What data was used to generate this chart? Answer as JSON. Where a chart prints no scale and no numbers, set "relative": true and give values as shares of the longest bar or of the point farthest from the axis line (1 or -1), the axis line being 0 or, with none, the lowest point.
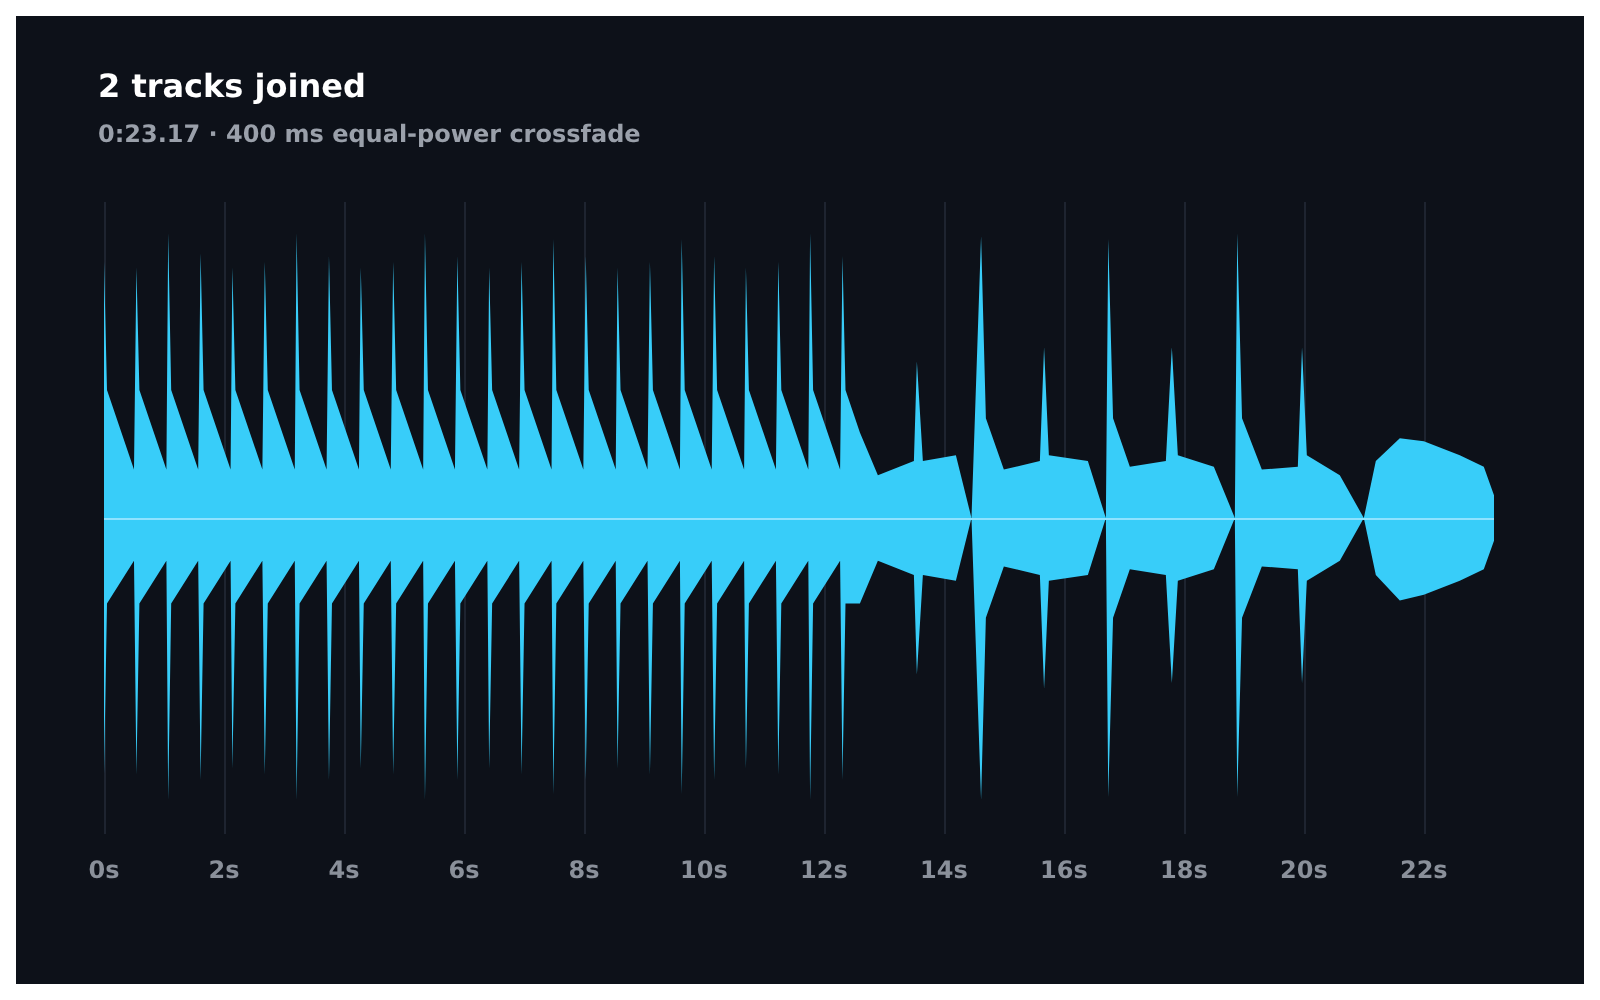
{
  "chart_data": {
    "type": "area",
    "title": "2 tracks joined",
    "subtitle": "0:23.17 · 400 ms equal-power crossfade",
    "relative": true,
    "x": [
      0,
      0.05,
      0.5,
      0.54,
      0.59,
      1.04,
      1.07,
      1.12,
      1.57,
      1.61,
      1.66,
      2.11,
      2.14,
      2.19,
      2.64,
      2.68,
      2.73,
      3.18,
      3.21,
      3.26,
      3.71,
      3.75,
      3.8,
      4.25,
      4.28,
      4.33,
      4.78,
      4.82,
      4.87,
      5.32,
      5.35,
      5.4,
      5.85,
      5.89,
      5.94,
      6.39,
      6.42,
      6.47,
      6.92,
      6.96,
      7.01,
      7.46,
      7.49,
      7.54,
      7.99,
      8.03,
      8.08,
      8.53,
      8.56,
      8.61,
      9.06,
      9.1,
      9.15,
      9.6,
      9.63,
      9.68,
      10.13,
      10.17,
      10.22,
      10.67,
      10.7,
      10.75,
      11.2,
      11.24,
      11.29,
      11.74,
      11.77,
      11.82,
      12.27,
      12.31,
      12.36,
      12.6,
      12.9,
      13.5,
      13.55,
      13.65,
      14.2,
      14.46,
      14.62,
      14.7,
      15.0,
      15.6,
      15.67,
      15.75,
      16.4,
      16.7,
      16.74,
      16.82,
      17.1,
      17.7,
      17.8,
      17.9,
      18.5,
      18.85,
      18.89,
      18.97,
      19.3,
      19.9,
      19.97,
      20.05,
      20.6,
      21.0,
      21.2,
      21.6,
      22.0,
      22.6,
      23.0,
      23.17
    ],
    "series": [
      {
        "color": "#38cdf9",
        "values": [
          0.9,
          0.45,
          0.17,
          0.88,
          0.45,
          0.17,
          1,
          0.45,
          0.17,
          0.93,
          0.45,
          0.17,
          0.88,
          0.45,
          0.17,
          0.9,
          0.45,
          0.17,
          1,
          0.45,
          0.17,
          0.92,
          0.45,
          0.17,
          0.88,
          0.45,
          0.17,
          0.9,
          0.45,
          0.17,
          1,
          0.45,
          0.17,
          0.92,
          0.45,
          0.17,
          0.88,
          0.45,
          0.17,
          0.9,
          0.45,
          0.17,
          0.98,
          0.45,
          0.17,
          0.92,
          0.45,
          0.17,
          0.88,
          0.45,
          0.17,
          0.9,
          0.45,
          0.17,
          0.98,
          0.45,
          0.17,
          0.92,
          0.45,
          0.17,
          0.88,
          0.45,
          0.17,
          0.9,
          0.45,
          0.17,
          1,
          0.45,
          0.17,
          0.92,
          0.45,
          0.3,
          0.15,
          0.2,
          0.55,
          0.2,
          0.22,
          0,
          0.99,
          0.35,
          0.17,
          0.2,
          0.6,
          0.22,
          0.2,
          0,
          0.98,
          0.35,
          0.18,
          0.2,
          0.6,
          0.22,
          0.18,
          0,
          1,
          0.35,
          0.17,
          0.18,
          0.6,
          0.22,
          0.15,
          0,
          0.2,
          0.28,
          0.27,
          0.22,
          0.18,
          0.08
        ]
      },
      {
        "color": "#38cdf9",
        "values": [
          -0.9,
          -0.3,
          -0.15,
          -0.9,
          -0.3,
          -0.15,
          -0.99,
          -0.3,
          -0.15,
          -0.92,
          -0.3,
          -0.15,
          -0.88,
          -0.3,
          -0.15,
          -0.9,
          -0.3,
          -0.15,
          -0.99,
          -0.3,
          -0.15,
          -0.92,
          -0.3,
          -0.15,
          -0.88,
          -0.3,
          -0.15,
          -0.9,
          -0.3,
          -0.15,
          -0.99,
          -0.3,
          -0.15,
          -0.92,
          -0.3,
          -0.15,
          -0.88,
          -0.3,
          -0.15,
          -0.9,
          -0.3,
          -0.15,
          -0.97,
          -0.3,
          -0.15,
          -0.92,
          -0.3,
          -0.15,
          -0.88,
          -0.3,
          -0.15,
          -0.9,
          -0.3,
          -0.15,
          -0.97,
          -0.3,
          -0.15,
          -0.92,
          -0.3,
          -0.15,
          -0.88,
          -0.3,
          -0.15,
          -0.9,
          -0.3,
          -0.15,
          -0.99,
          -0.3,
          -0.15,
          -0.92,
          -0.3,
          -0.3,
          -0.15,
          -0.2,
          -0.55,
          -0.2,
          -0.22,
          0,
          -0.99,
          -0.35,
          -0.17,
          -0.2,
          -0.6,
          -0.22,
          -0.2,
          0,
          -0.98,
          -0.35,
          -0.18,
          -0.2,
          -0.58,
          -0.22,
          -0.18,
          0,
          -0.98,
          -0.35,
          -0.17,
          -0.18,
          -0.58,
          -0.22,
          -0.15,
          0,
          -0.2,
          -0.29,
          -0.27,
          -0.22,
          -0.18,
          -0.08
        ]
      }
    ],
    "xlim": [
      0,
      23.17
    ],
    "xticks": [
      {
        "value": 0,
        "label": "0s"
      },
      {
        "value": 2,
        "label": "2s"
      },
      {
        "value": 4,
        "label": "4s"
      },
      {
        "value": 6,
        "label": "6s"
      },
      {
        "value": 8,
        "label": "8s"
      },
      {
        "value": 10,
        "label": "10s"
      },
      {
        "value": 12,
        "label": "12s"
      },
      {
        "value": 14,
        "label": "14s"
      },
      {
        "value": 16,
        "label": "16s"
      },
      {
        "value": 18,
        "label": "18s"
      },
      {
        "value": 20,
        "label": "20s"
      },
      {
        "value": 22,
        "label": "22s"
      }
    ],
    "ref_lines": [
      {
        "axis": "y",
        "value": 0,
        "color": "#8fe3ff"
      }
    ],
    "grid": "x"
  }
}
